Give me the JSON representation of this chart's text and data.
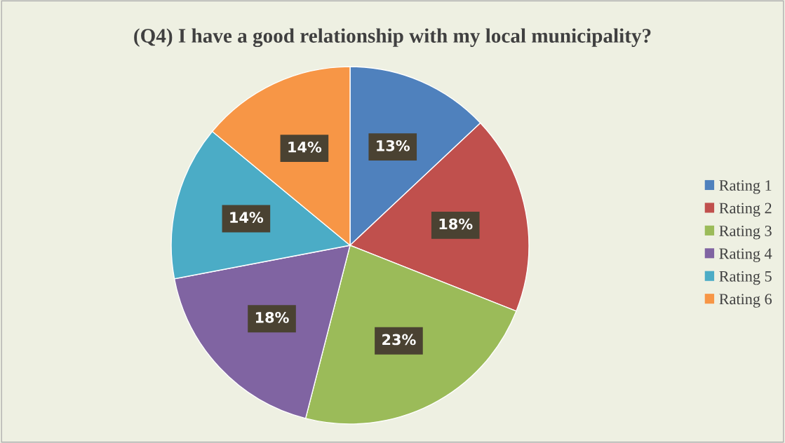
{
  "chart_data": {
    "type": "pie",
    "title": "(Q4) I have a good relationship with my local municipality?",
    "categories": [
      "Rating 1",
      "Rating 2",
      "Rating 3",
      "Rating 4",
      "Rating 5",
      "Rating 6"
    ],
    "values": [
      13,
      18,
      23,
      18,
      14,
      14
    ],
    "value_labels": [
      "13%",
      "18%",
      "23%",
      "18%",
      "14%",
      "14%"
    ],
    "colors": [
      "#4f81bd",
      "#c0504d",
      "#9bbb59",
      "#8064a2",
      "#4bacc6",
      "#f79646"
    ],
    "legend": "right"
  }
}
